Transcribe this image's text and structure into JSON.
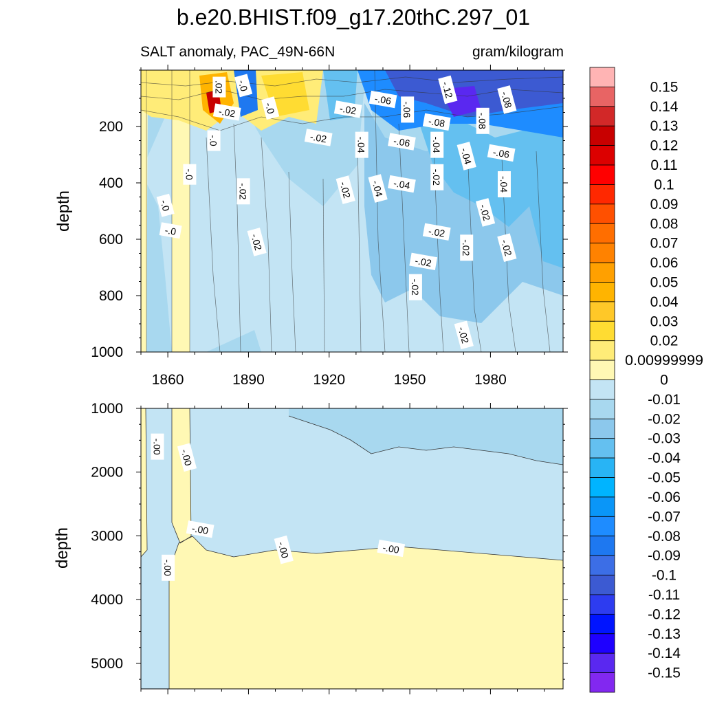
{
  "chart_data": {
    "type": "contour",
    "title": "b.e20.BHIST.f09_g17.20thC.297_01",
    "subtitle_left": "SALT anomaly, PAC_49N-66N",
    "subtitle_right": "gram/kilogram",
    "x": {
      "range": [
        1850,
        2007
      ],
      "ticks": [
        1860,
        1890,
        1920,
        1950,
        1980
      ]
    },
    "panels": [
      {
        "name": "upper",
        "ylabel": "depth",
        "yrange": [
          0,
          1000
        ],
        "yticks": [
          200,
          400,
          600,
          800,
          1000
        ],
        "contour_labels": [
          {
            "text": ".02",
            "x": 1879,
            "y": 60
          },
          {
            "text": "-.0",
            "x": 1888,
            "y": 55
          },
          {
            "text": "-.02",
            "x": 1882,
            "y": 150
          },
          {
            "text": "-.0",
            "x": 1877,
            "y": 250
          },
          {
            "text": "-.0",
            "x": 1898,
            "y": 135
          },
          {
            "text": "-.02",
            "x": 1916,
            "y": 240
          },
          {
            "text": "-.0",
            "x": 1868,
            "y": 370
          },
          {
            "text": "-.0",
            "x": 1859,
            "y": 480
          },
          {
            "text": "-.0",
            "x": 1861,
            "y": 570
          },
          {
            "text": "-.02",
            "x": 1888,
            "y": 430
          },
          {
            "text": "-.02",
            "x": 1893,
            "y": 610
          },
          {
            "text": "-.02",
            "x": 1927,
            "y": 140
          },
          {
            "text": "-.04",
            "x": 1932,
            "y": 265
          },
          {
            "text": "-.02",
            "x": 1926,
            "y": 425
          },
          {
            "text": "-.06",
            "x": 1940,
            "y": 105
          },
          {
            "text": "-.06",
            "x": 1949,
            "y": 140
          },
          {
            "text": "-.12",
            "x": 1964,
            "y": 70
          },
          {
            "text": "-.08",
            "x": 1960,
            "y": 185
          },
          {
            "text": "-.08",
            "x": 1977,
            "y": 180
          },
          {
            "text": "-.08",
            "x": 1986,
            "y": 105
          },
          {
            "text": "-.06",
            "x": 1947,
            "y": 255
          },
          {
            "text": "-.04",
            "x": 1960,
            "y": 265
          },
          {
            "text": "-.04",
            "x": 1971,
            "y": 305
          },
          {
            "text": "-.06",
            "x": 1984,
            "y": 295
          },
          {
            "text": "-.04",
            "x": 1985,
            "y": 405
          },
          {
            "text": "-.04",
            "x": 1938,
            "y": 420
          },
          {
            "text": "-.04",
            "x": 1947,
            "y": 405
          },
          {
            "text": "-.02",
            "x": 1960,
            "y": 380
          },
          {
            "text": "-.02",
            "x": 1978,
            "y": 505
          },
          {
            "text": "-.02",
            "x": 1960,
            "y": 575
          },
          {
            "text": "-.02",
            "x": 1971,
            "y": 630
          },
          {
            "text": "-.02",
            "x": 1986,
            "y": 630
          },
          {
            "text": "-.02",
            "x": 1955,
            "y": 680
          },
          {
            "text": "-.02",
            "x": 1952,
            "y": 770
          },
          {
            "text": "-.02",
            "x": 1970,
            "y": 940
          }
        ]
      },
      {
        "name": "lower",
        "ylabel": "depth",
        "yrange": [
          1000,
          5400
        ],
        "yticks": [
          1000,
          2000,
          3000,
          4000,
          5000
        ],
        "contour_labels": [
          {
            "text": "-.00",
            "x": 1856,
            "y": 1600
          },
          {
            "text": "-.00",
            "x": 1867,
            "y": 1770
          },
          {
            "text": "-.00",
            "x": 1872,
            "y": 2900
          },
          {
            "text": "-.00",
            "x": 1860,
            "y": 3500
          },
          {
            "text": "-.00",
            "x": 1903,
            "y": 3220
          },
          {
            "text": "-.00",
            "x": 1943,
            "y": 3200
          }
        ]
      }
    ],
    "colorbar": {
      "labels": [
        "0.15",
        "0.14",
        "0.13",
        "0.12",
        "0.11",
        "0.1",
        "0.09",
        "0.08",
        "0.07",
        "0.06",
        "0.05",
        "0.04",
        "0.03",
        "0.02",
        "0.00999999",
        "0",
        "-0.01",
        "-0.02",
        "-0.03",
        "-0.04",
        "-0.05",
        "-0.06",
        "-0.07",
        "-0.08",
        "-0.09",
        "-0.1",
        "-0.11",
        "-0.12",
        "-0.13",
        "-0.14",
        "-0.15"
      ],
      "colors": [
        "#ffb4b4",
        "#e86464",
        "#d22828",
        "#c80000",
        "#dc0000",
        "#ff0000",
        "#ff2800",
        "#ff5000",
        "#ff6e00",
        "#ff8200",
        "#ffa000",
        "#ffb400",
        "#ffc828",
        "#ffdc32",
        "#ffec78",
        "#fff8b4",
        "#c3e4f4",
        "#a8d8ef",
        "#8cc8ec",
        "#64c0f0",
        "#28b4f5",
        "#00b4ff",
        "#0a96f8",
        "#1e8cff",
        "#1e78f0",
        "#3c6ee6",
        "#3c5ad2",
        "#2d3cf0",
        "#0014ff",
        "#1e00ff",
        "#5a28f0",
        "#8228f0"
      ]
    }
  }
}
